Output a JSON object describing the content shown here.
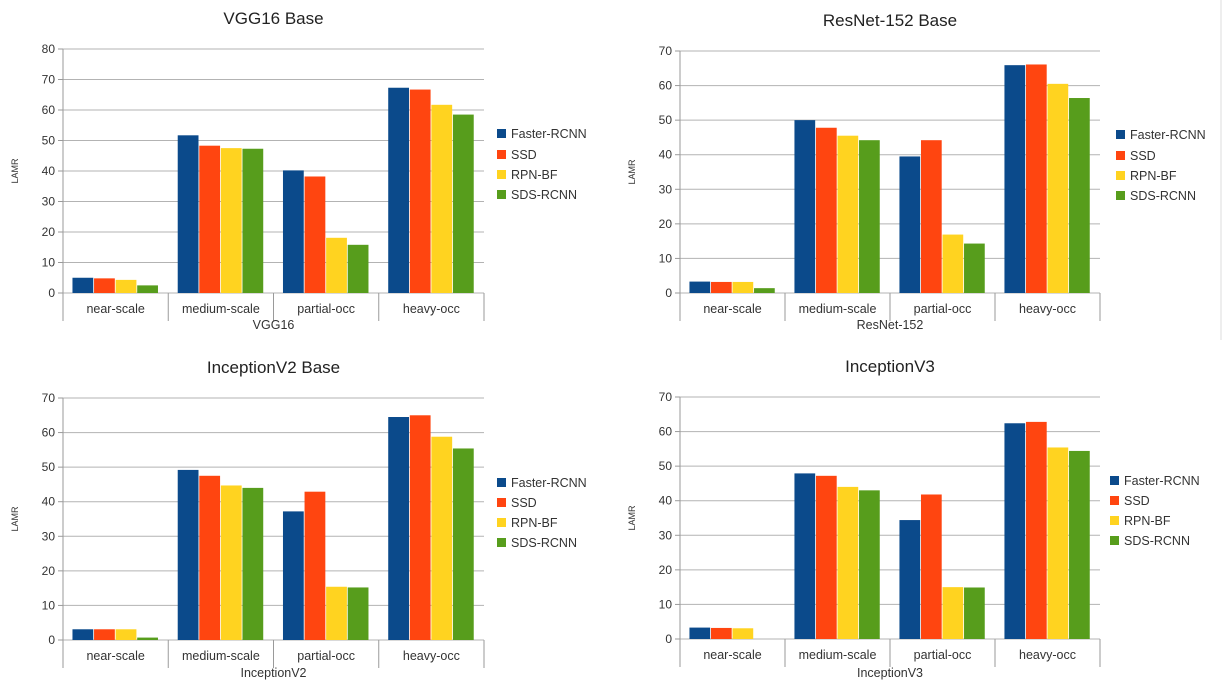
{
  "colors": {
    "Faster-RCNN": "#0b4a8b",
    "SSD": "#ff4510",
    "RPN-BF": "#ffd320",
    "SDS-RCNN": "#579d1c",
    "grid": "#b3b3b3",
    "axis": "#9a9a9a",
    "text": "#333333"
  },
  "chart_data": [
    {
      "type": "bar",
      "title": "VGG16 Base",
      "xlabel": "VGG16",
      "ylabel": "LAMR",
      "ylim": [
        0,
        80
      ],
      "yticks": [
        0,
        10,
        20,
        30,
        40,
        50,
        60,
        70,
        80
      ],
      "grid": true,
      "legend": "right",
      "categories": [
        "near-scale",
        "medium-scale",
        "partial-occ",
        "heavy-occ"
      ],
      "series": [
        {
          "name": "Faster-RCNN",
          "values": [
            5,
            51.7,
            40.2,
            67.3
          ]
        },
        {
          "name": "SSD",
          "values": [
            4.8,
            48.3,
            38.2,
            66.7
          ]
        },
        {
          "name": "RPN-BF",
          "values": [
            4.3,
            47.5,
            18.1,
            61.7
          ]
        },
        {
          "name": "SDS-RCNN",
          "values": [
            2.5,
            47.3,
            15.8,
            58.5
          ]
        }
      ]
    },
    {
      "type": "bar",
      "title": "ResNet-152 Base",
      "xlabel": "ResNet-152",
      "ylabel": "LAMR",
      "ylim": [
        0,
        70
      ],
      "yticks": [
        0,
        10,
        20,
        30,
        40,
        50,
        60,
        70
      ],
      "grid": true,
      "legend": "right",
      "categories": [
        "near-scale",
        "medium-scale",
        "partial-occ",
        "heavy-occ"
      ],
      "series": [
        {
          "name": "Faster-RCNN",
          "values": [
            3.3,
            50,
            39.5,
            65.9
          ]
        },
        {
          "name": "SSD",
          "values": [
            3.2,
            47.8,
            44.2,
            66.1
          ]
        },
        {
          "name": "RPN-BF",
          "values": [
            3.2,
            45.5,
            16.9,
            60.5
          ]
        },
        {
          "name": "SDS-RCNN",
          "values": [
            1.4,
            44.2,
            14.3,
            56.4
          ]
        }
      ]
    },
    {
      "type": "bar",
      "title": "InceptionV2 Base",
      "xlabel": "InceptionV2",
      "ylabel": "LAMR",
      "ylim": [
        0,
        70
      ],
      "yticks": [
        0,
        10,
        20,
        30,
        40,
        50,
        60,
        70
      ],
      "grid": true,
      "legend": "right",
      "categories": [
        "near-scale",
        "medium-scale",
        "partial-occ",
        "heavy-occ"
      ],
      "series": [
        {
          "name": "Faster-RCNN",
          "values": [
            3.1,
            49.2,
            37.2,
            64.5
          ]
        },
        {
          "name": "SSD",
          "values": [
            3.1,
            47.5,
            42.9,
            65
          ]
        },
        {
          "name": "RPN-BF",
          "values": [
            3.1,
            44.7,
            15.4,
            58.8
          ]
        },
        {
          "name": "SDS-RCNN",
          "values": [
            0.7,
            44,
            15.2,
            55.4
          ]
        }
      ]
    },
    {
      "type": "bar",
      "title": "InceptionV3",
      "xlabel": "InceptionV3",
      "ylabel": "LAMR",
      "ylim": [
        0,
        70
      ],
      "yticks": [
        0,
        10,
        20,
        30,
        40,
        50,
        60,
        70
      ],
      "grid": true,
      "legend": "right",
      "categories": [
        "near-scale",
        "medium-scale",
        "partial-occ",
        "heavy-occ"
      ],
      "series": [
        {
          "name": "Faster-RCNN",
          "values": [
            3.3,
            47.9,
            34.4,
            62.4
          ]
        },
        {
          "name": "SSD",
          "values": [
            3.2,
            47.2,
            41.8,
            62.8
          ]
        },
        {
          "name": "RPN-BF",
          "values": [
            3.1,
            44,
            15,
            55.4
          ]
        },
        {
          "name": "SDS-RCNN",
          "values": [
            0,
            43,
            14.9,
            54.4
          ]
        }
      ]
    }
  ]
}
